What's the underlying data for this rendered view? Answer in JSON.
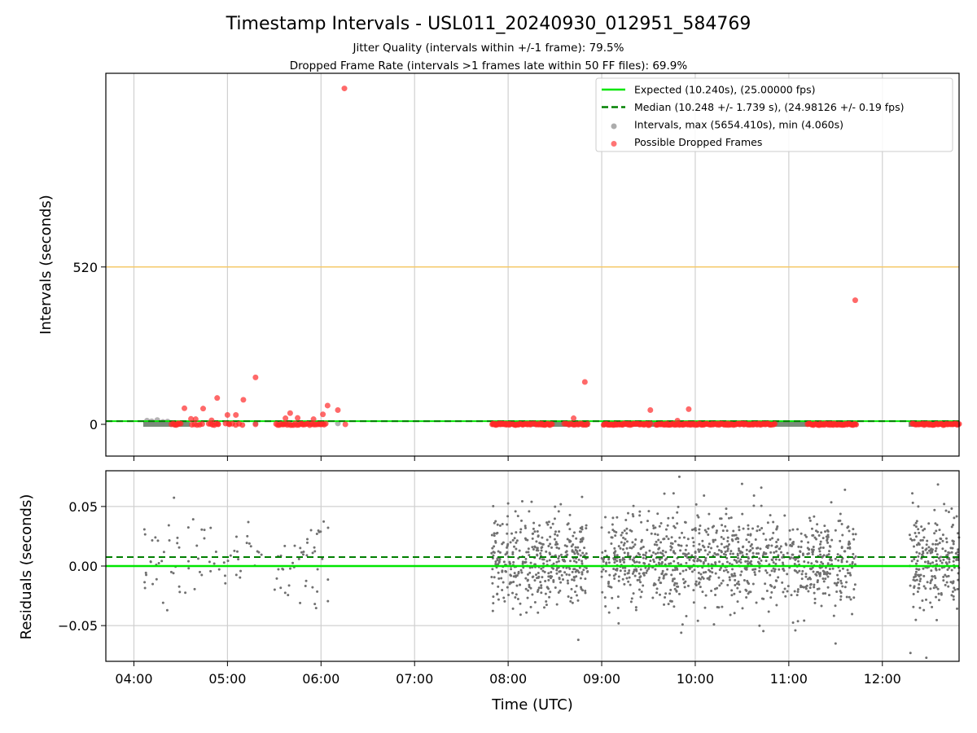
{
  "chart_data": [
    {
      "type": "scatter",
      "title": "Timestamp Intervals - USL011_20240930_012951_584769",
      "subtitle_lines": [
        "Jitter Quality (intervals within +/-1 frame): 79.5%",
        "Dropped Frame Rate (intervals >1 frames late within 50 FF files): 69.9%"
      ],
      "xlabel": "",
      "ylabel": "Intervals (seconds)",
      "x_unit": "hours UTC (decimal)",
      "xlim": [
        3.7,
        12.82
      ],
      "ylim": [
        -105,
        1160
      ],
      "yticks": [
        0,
        520
      ],
      "ytick_labels": [
        "0",
        "520"
      ],
      "grid": "vertical",
      "legend_position": "upper right",
      "threshold_line": {
        "y": 520,
        "color": "#f5c96a"
      },
      "expected": {
        "y": 10.24,
        "label": "Expected (10.240s), (25.00000 fps)",
        "color": "#00e600"
      },
      "median": {
        "y": 10.248,
        "label": "Median (10.248 +/- 1.739 s), (24.98126 +/- 0.19 fps)",
        "color": "#008000"
      },
      "legend": [
        {
          "label": "Expected (10.240s), (25.00000 fps)",
          "kind": "line",
          "color": "#00e600"
        },
        {
          "label": "Median (10.248 +/- 1.739 s), (24.98126 +/- 0.19 fps)",
          "kind": "dashed",
          "color": "#008000"
        },
        {
          "label": "Intervals, max (5654.410s), min (4.060s)",
          "kind": "marker",
          "color": "#808080"
        },
        {
          "label": "Possible Dropped Frames",
          "kind": "marker",
          "color": "#ff2a2a"
        }
      ],
      "series": [
        {
          "name": "Possible Dropped Frames",
          "color": "#ff2a2a",
          "points": [
            [
              6.25,
              1110
            ],
            [
              11.71,
              410
            ],
            [
              5.3,
              155
            ],
            [
              8.82,
              140
            ],
            [
              4.89,
              87
            ],
            [
              5.17,
              81
            ],
            [
              9.52,
              47
            ],
            [
              9.93,
              50
            ],
            [
              6.07,
              62
            ],
            [
              6.18,
              47
            ],
            [
              4.54,
              53
            ],
            [
              4.74,
              52
            ],
            [
              5.67,
              37
            ],
            [
              5.0,
              31
            ],
            [
              5.09,
              31
            ],
            [
              6.02,
              33
            ],
            [
              8.7,
              20
            ],
            [
              5.62,
              20
            ],
            [
              5.75,
              21
            ],
            [
              4.61,
              18
            ],
            [
              4.66,
              17
            ],
            [
              5.92,
              17
            ],
            [
              4.83,
              13
            ],
            [
              9.81,
              12
            ],
            [
              4.4,
              0
            ],
            [
              4.47,
              0
            ],
            [
              4.9,
              0
            ],
            [
              5.02,
              0
            ],
            [
              5.3,
              0
            ],
            [
              5.6,
              0
            ],
            [
              5.8,
              0
            ],
            [
              6.0,
              0
            ],
            [
              6.26,
              0
            ]
          ],
          "clusters": [
            {
              "x_range": [
                4.42,
                4.5
              ],
              "y": 0,
              "count": 6
            },
            {
              "x_range": [
                4.62,
                4.73
              ],
              "y": 0,
              "count": 5
            },
            {
              "x_range": [
                4.8,
                4.9
              ],
              "y": 0,
              "count": 6
            },
            {
              "x_range": [
                4.98,
                5.16
              ],
              "y": 0,
              "count": 6
            },
            {
              "x_range": [
                5.52,
                6.05
              ],
              "y": 0,
              "count": 32
            },
            {
              "x_range": [
                7.83,
                8.02
              ],
              "y": 0,
              "count": 25
            },
            {
              "x_range": [
                8.05,
                8.25
              ],
              "y": 0,
              "count": 20
            },
            {
              "x_range": [
                8.28,
                8.47
              ],
              "y": 0,
              "count": 18
            },
            {
              "x_range": [
                8.6,
                8.85
              ],
              "y": 0,
              "count": 16
            },
            {
              "x_range": [
                9.02,
                9.52
              ],
              "y": 0,
              "count": 45
            },
            {
              "x_range": [
                9.58,
                9.97
              ],
              "y": 0,
              "count": 40
            },
            {
              "x_range": [
                9.98,
                10.85
              ],
              "y": 0,
              "count": 80
            },
            {
              "x_range": [
                11.2,
                11.72
              ],
              "y": 0,
              "count": 50
            },
            {
              "x_range": [
                12.32,
                12.82
              ],
              "y": 0,
              "count": 45
            }
          ]
        },
        {
          "name": "Intervals, max (5654.410s), min (4.060s)",
          "color": "#808080",
          "points": [
            [
              4.14,
              12
            ],
            [
              4.19,
              10
            ],
            [
              4.25,
              14
            ],
            [
              4.31,
              8
            ],
            [
              4.36,
              9
            ],
            [
              5.3,
              3
            ],
            [
              6.18,
              3
            ]
          ]
        }
      ]
    },
    {
      "type": "scatter",
      "xlabel": "Time (UTC)",
      "ylabel": "Residuals (seconds)",
      "x_unit": "hours UTC (decimal)",
      "xlim": [
        3.7,
        12.82
      ],
      "ylim": [
        -0.08,
        0.08
      ],
      "xticks": [
        4,
        5,
        6,
        7,
        8,
        9,
        10,
        11,
        12
      ],
      "xtick_labels": [
        "04:00",
        "05:00",
        "06:00",
        "07:00",
        "08:00",
        "09:00",
        "10:00",
        "11:00",
        "12:00"
      ],
      "yticks": [
        -0.05,
        0.0,
        0.05
      ],
      "ytick_labels": [
        "−0.05",
        "0.00",
        "0.05"
      ],
      "grid": true,
      "expected_residual": {
        "y": 0.0,
        "color": "#00e600"
      },
      "median_residual": {
        "y": 0.0075,
        "color": "#008000"
      },
      "series": [
        {
          "name": "Residuals",
          "color": "#707070",
          "std": 0.019,
          "clusters": [
            {
              "x_range": [
                4.1,
                4.5
              ],
              "count": 30
            },
            {
              "x_range": [
                4.5,
                5.0
              ],
              "count": 22
            },
            {
              "x_range": [
                5.0,
                5.4
              ],
              "count": 18
            },
            {
              "x_range": [
                5.5,
                6.1
              ],
              "count": 45
            },
            {
              "x_range": [
                7.82,
                8.85
              ],
              "count": 420
            },
            {
              "x_range": [
                9.0,
                11.72
              ],
              "count": 1000
            },
            {
              "x_range": [
                12.28,
                12.82
              ],
              "count": 230
            }
          ],
          "outliers": [
            [
              9.83,
              0.075
            ],
            [
              10.5,
              0.069
            ],
            [
              8.75,
              -0.062
            ],
            [
              10.2,
              -0.049
            ],
            [
              11.5,
              -0.065
            ],
            [
              12.3,
              -0.073
            ],
            [
              12.47,
              -0.077
            ],
            [
              9.85,
              -0.056
            ],
            [
              11.07,
              -0.054
            ],
            [
              8.79,
              0.058
            ],
            [
              11.6,
              0.064
            ],
            [
              12.32,
              0.061
            ]
          ]
        }
      ]
    }
  ]
}
